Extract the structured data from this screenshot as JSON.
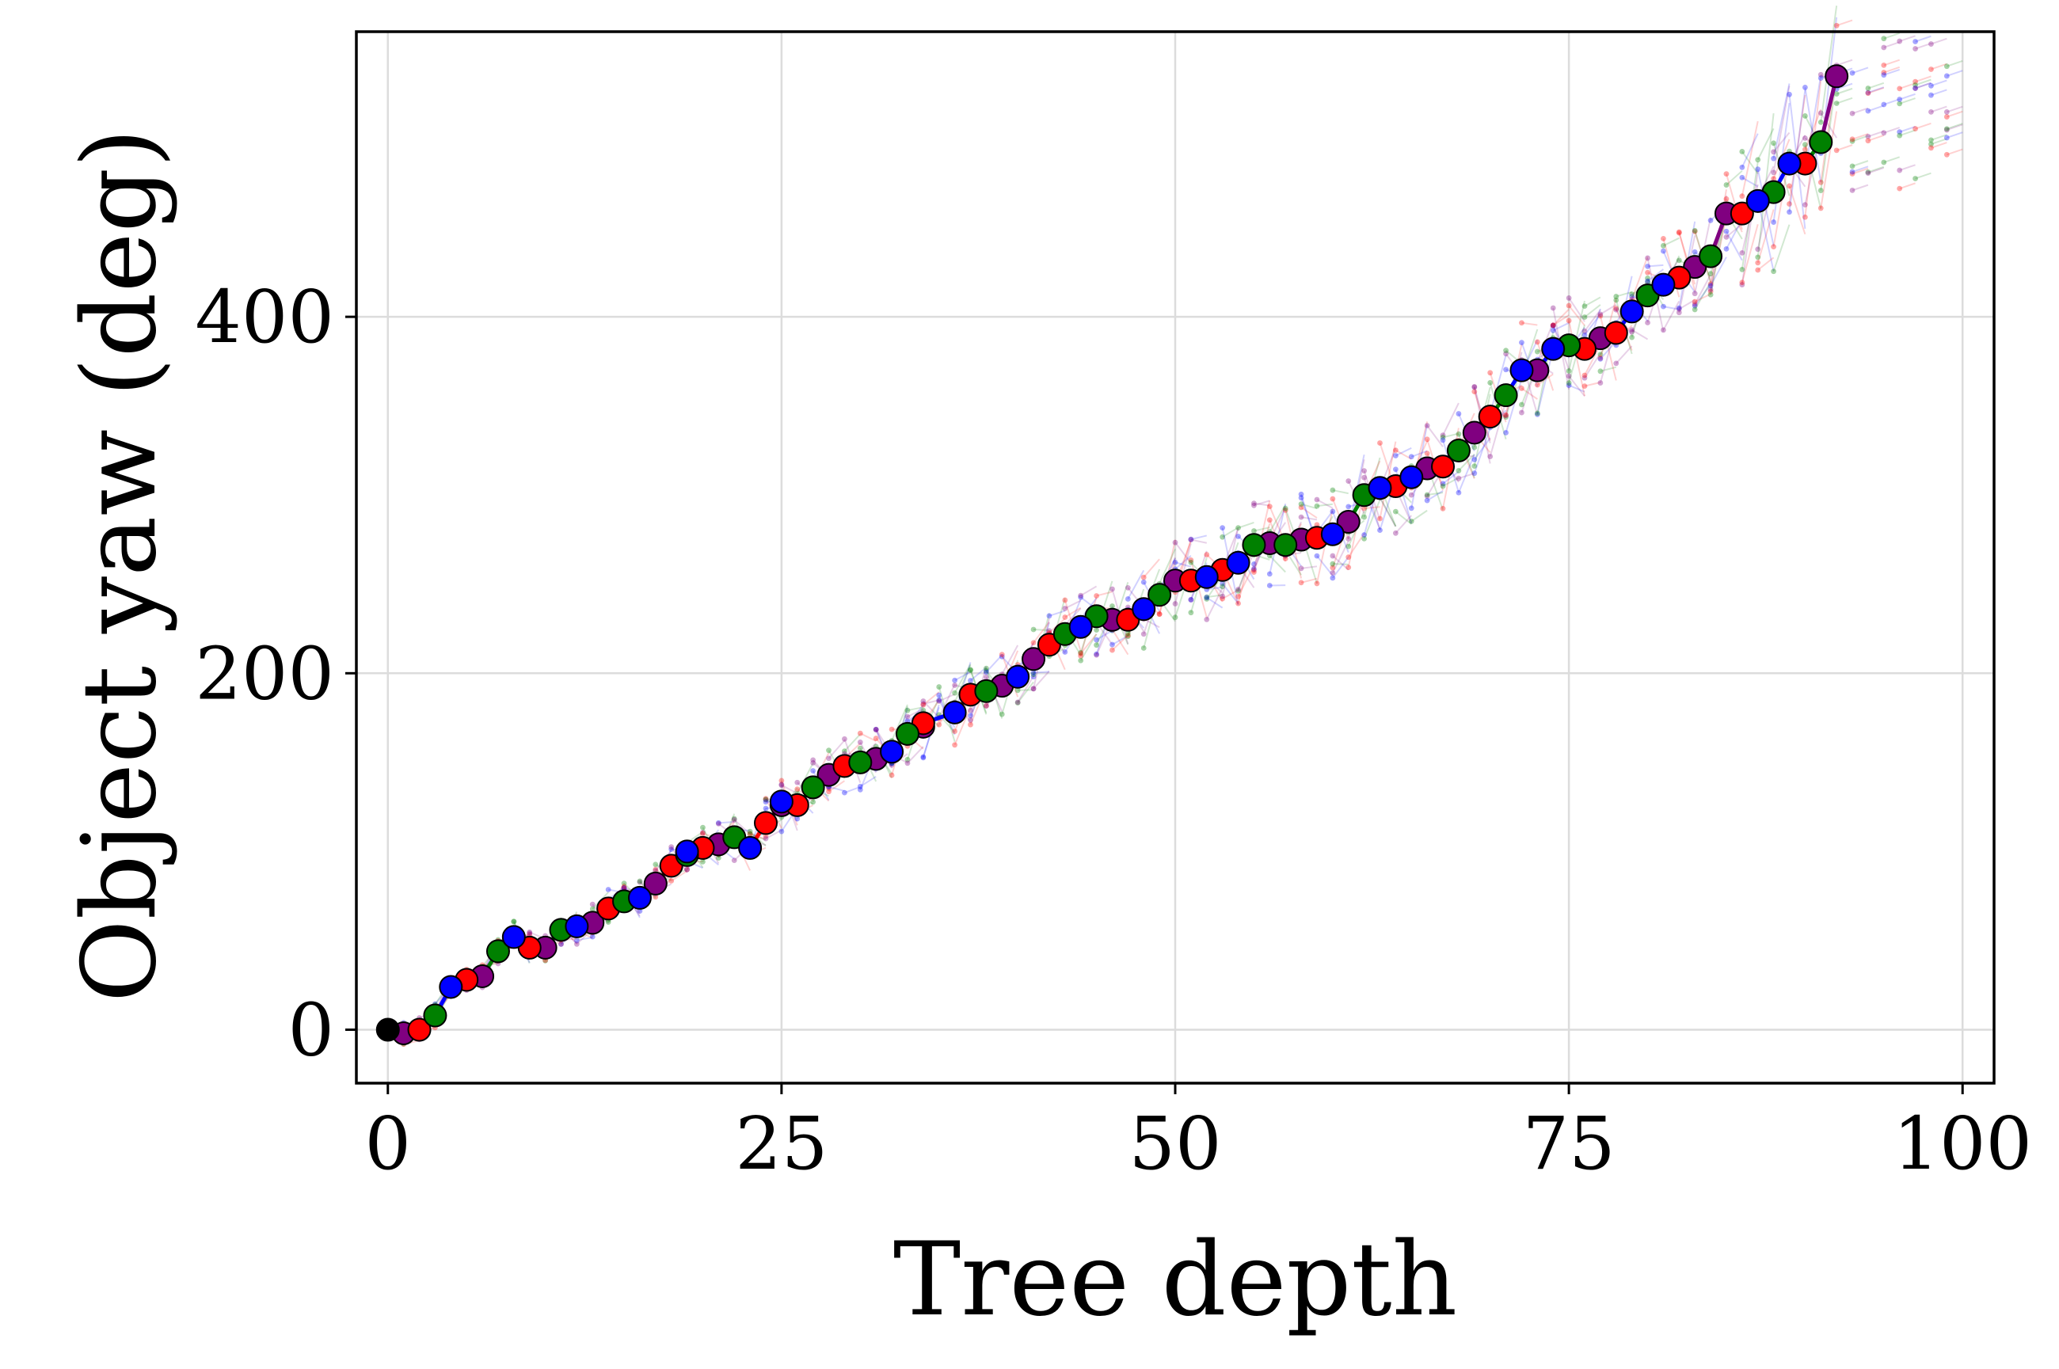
{
  "chart_data": {
    "type": "scatter",
    "title": "",
    "xlabel": "Tree depth",
    "ylabel": "Object yaw (deg)",
    "xlim": [
      -2,
      102
    ],
    "ylim": [
      -30,
      560
    ],
    "xticks": [
      0,
      25,
      50,
      75,
      100
    ],
    "xtick_labels": [
      "0",
      "25",
      "50",
      "75",
      "100"
    ],
    "yticks": [
      0,
      200,
      400
    ],
    "ytick_labels": [
      "0",
      "200",
      "400"
    ],
    "grid": true,
    "legend": "none",
    "start_point": {
      "x": 0,
      "y": 0,
      "color": "#000000"
    },
    "colors": [
      "#800080",
      "#ff0000",
      "#008000",
      "#0000ff"
    ],
    "series": [
      {
        "color": "#800080",
        "points": [
          [
            1,
            -2
          ],
          [
            6,
            30
          ],
          [
            10,
            46
          ],
          [
            13,
            60
          ],
          [
            17,
            82
          ],
          [
            21,
            104
          ],
          [
            25,
            126
          ],
          [
            28,
            143
          ],
          [
            31,
            152
          ],
          [
            34,
            170
          ],
          [
            39,
            193
          ],
          [
            41,
            208
          ],
          [
            46,
            230
          ],
          [
            50,
            252
          ],
          [
            56,
            273
          ],
          [
            58,
            275
          ],
          [
            61,
            285
          ],
          [
            66,
            315
          ],
          [
            69,
            335
          ],
          [
            73,
            370
          ],
          [
            77,
            388
          ],
          [
            83,
            428
          ],
          [
            85,
            458
          ],
          [
            92,
            535
          ]
        ]
      },
      {
        "color": "#ff0000",
        "points": [
          [
            2,
            0
          ],
          [
            5,
            28
          ],
          [
            9,
            46
          ],
          [
            14,
            68
          ],
          [
            18,
            92
          ],
          [
            20,
            102
          ],
          [
            24,
            116
          ],
          [
            26,
            126
          ],
          [
            29,
            148
          ],
          [
            34,
            172
          ],
          [
            37,
            188
          ],
          [
            42,
            216
          ],
          [
            47,
            230
          ],
          [
            51,
            252
          ],
          [
            53,
            258
          ],
          [
            59,
            276
          ],
          [
            64,
            305
          ],
          [
            67,
            316
          ],
          [
            70,
            344
          ],
          [
            76,
            382
          ],
          [
            78,
            391
          ],
          [
            82,
            422
          ],
          [
            86,
            458
          ],
          [
            90,
            486
          ]
        ]
      },
      {
        "color": "#008000",
        "points": [
          [
            3,
            8
          ],
          [
            7,
            44
          ],
          [
            11,
            56
          ],
          [
            15,
            72
          ],
          [
            19,
            98
          ],
          [
            22,
            108
          ],
          [
            27,
            136
          ],
          [
            30,
            150
          ],
          [
            33,
            166
          ],
          [
            38,
            190
          ],
          [
            43,
            222
          ],
          [
            45,
            232
          ],
          [
            49,
            244
          ],
          [
            55,
            272
          ],
          [
            57,
            272
          ],
          [
            62,
            300
          ],
          [
            68,
            325
          ],
          [
            71,
            356
          ],
          [
            75,
            384
          ],
          [
            80,
            412
          ],
          [
            84,
            434
          ],
          [
            88,
            470
          ],
          [
            91,
            498
          ]
        ]
      },
      {
        "color": "#0000ff",
        "points": [
          [
            4,
            24
          ],
          [
            8,
            52
          ],
          [
            12,
            58
          ],
          [
            16,
            74
          ],
          [
            19,
            100
          ],
          [
            23,
            102
          ],
          [
            25,
            128
          ],
          [
            32,
            156
          ],
          [
            36,
            178
          ],
          [
            40,
            198
          ],
          [
            44,
            226
          ],
          [
            48,
            236
          ],
          [
            52,
            254
          ],
          [
            54,
            262
          ],
          [
            60,
            278
          ],
          [
            63,
            304
          ],
          [
            65,
            310
          ],
          [
            72,
            370
          ],
          [
            74,
            382
          ],
          [
            79,
            403
          ],
          [
            81,
            418
          ],
          [
            87,
            465
          ],
          [
            89,
            486
          ]
        ]
      }
    ]
  }
}
